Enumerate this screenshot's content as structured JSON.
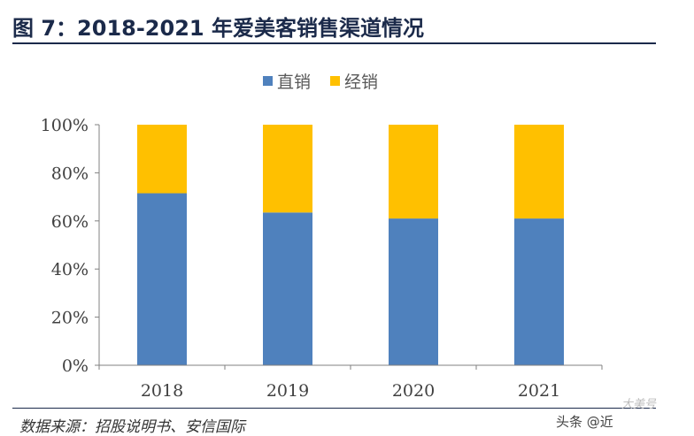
{
  "figure": {
    "title": "图 7：2018-2021 年爱美客销售渠道情况",
    "source": "数据来源：招股说明书、安信国际",
    "watermark": "头条 @近",
    "watermark_alt": "大美号"
  },
  "chart_data": {
    "type": "bar",
    "stacked": true,
    "categories": [
      "2018",
      "2019",
      "2020",
      "2021"
    ],
    "series": [
      {
        "name": "直销",
        "color": "#4f81bd",
        "values": [
          71.5,
          63.5,
          61,
          61
        ]
      },
      {
        "name": "经销",
        "color": "#ffc000",
        "values": [
          28.5,
          36.5,
          39,
          39
        ]
      }
    ],
    "ylim": [
      0,
      100
    ],
    "yticks": [
      "0%",
      "20%",
      "40%",
      "60%",
      "80%",
      "100%"
    ],
    "legend_position": "top-center",
    "grid": false
  }
}
